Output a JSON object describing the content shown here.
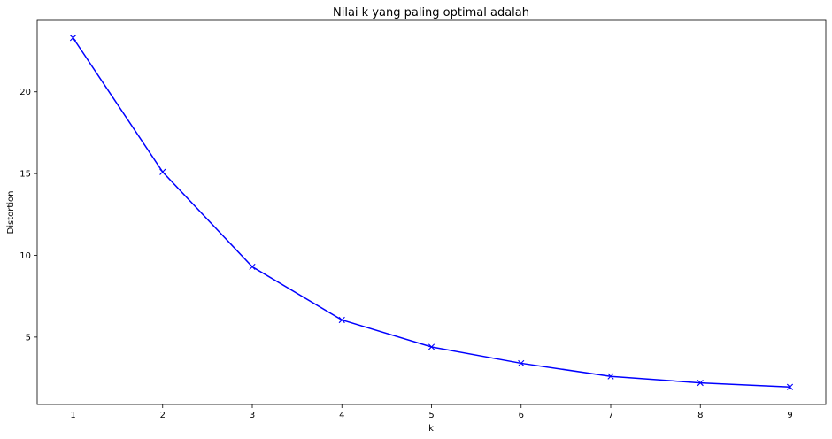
{
  "chart_data": {
    "type": "line",
    "title": "Nilai k yang paling optimal adalah",
    "xlabel": "k",
    "ylabel": "Distortion",
    "x": [
      1,
      2,
      3,
      4,
      5,
      6,
      7,
      8,
      9
    ],
    "series": [
      {
        "values": [
          23.3,
          15.1,
          9.3,
          6.05,
          4.4,
          3.4,
          2.6,
          2.2,
          1.95
        ],
        "color": "#0000ff",
        "marker": "x"
      }
    ],
    "xticks": [
      1,
      2,
      3,
      4,
      5,
      6,
      7,
      8,
      9
    ],
    "yticks": [
      5,
      10,
      15,
      20
    ],
    "xlim": [
      0.6,
      9.4
    ],
    "ylim": [
      0.88,
      24.37
    ],
    "grid": false,
    "legend": "none"
  }
}
